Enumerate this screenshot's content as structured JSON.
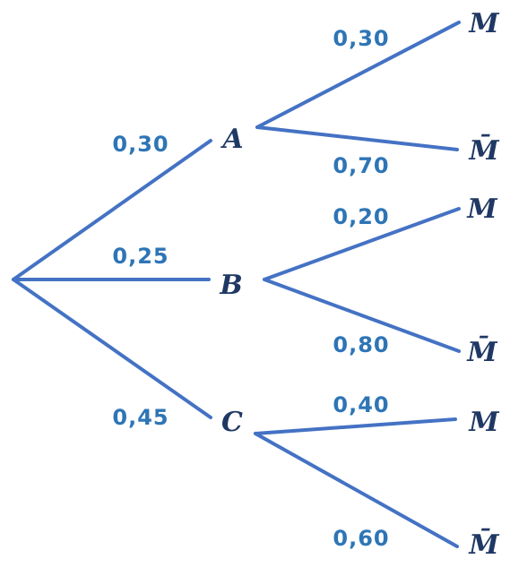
{
  "nodes": [
    {
      "label": "A"
    },
    {
      "label": "B"
    },
    {
      "label": "C"
    },
    {
      "label": "M"
    },
    {
      "label": "M̄"
    },
    {
      "label": "M"
    },
    {
      "label": "M̄"
    },
    {
      "label": "M"
    },
    {
      "label": "M̄"
    }
  ],
  "edges": [
    {
      "label": "0,30"
    },
    {
      "label": "0,25"
    },
    {
      "label": "0,45"
    },
    {
      "label": "0,30"
    },
    {
      "label": "0,70"
    },
    {
      "label": "0,20"
    },
    {
      "label": "0,80"
    },
    {
      "label": "0,40"
    },
    {
      "label": "0,60"
    }
  ]
}
